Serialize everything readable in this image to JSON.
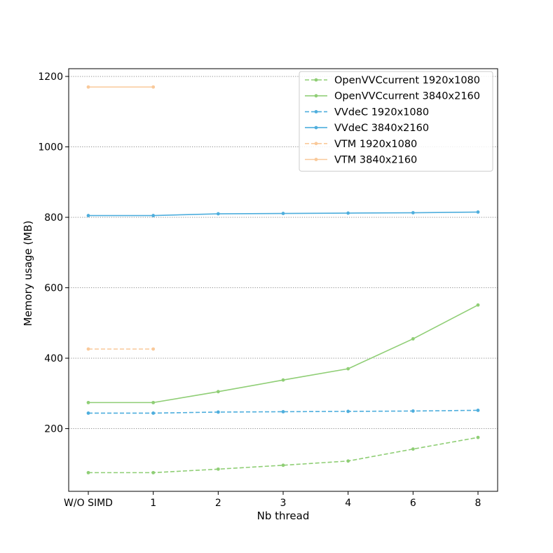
{
  "chart_data": {
    "type": "line",
    "title": "",
    "xlabel": "Nb thread",
    "ylabel": "Memory usage (MB)",
    "categories": [
      "W/O SIMD",
      "1",
      "2",
      "3",
      "4",
      "6",
      "8"
    ],
    "ylim": [
      22,
      1222
    ],
    "yticks": [
      200,
      400,
      600,
      800,
      1000,
      1200
    ],
    "grid": "horizontal-dotted",
    "legend_position": "top-right",
    "series": [
      {
        "name": "OpenVVCcurrent 1920x1080",
        "color": "#8fce75",
        "style": "dashed",
        "values": [
          75,
          75,
          85,
          96,
          108,
          142,
          175
        ]
      },
      {
        "name": "OpenVVCcurrent 3840x2160",
        "color": "#8fce75",
        "style": "solid",
        "values": [
          274,
          274,
          305,
          338,
          370,
          455,
          551
        ]
      },
      {
        "name": "VVdeC 1920x1080",
        "color": "#4eaedd",
        "style": "dashed",
        "values": [
          244,
          244,
          247,
          248,
          249,
          250,
          252
        ]
      },
      {
        "name": "VVdeC 3840x2160",
        "color": "#4eaedd",
        "style": "solid",
        "values": [
          805,
          805,
          810,
          811,
          812,
          813,
          815
        ]
      },
      {
        "name": "VTM 1920x1080",
        "color": "#f9c99a",
        "style": "dashed",
        "values": [
          426,
          426,
          null,
          null,
          null,
          null,
          null
        ]
      },
      {
        "name": "VTM 3840x2160",
        "color": "#f9c99a",
        "style": "solid",
        "values": [
          1170,
          1170,
          null,
          null,
          null,
          null,
          null
        ]
      }
    ]
  }
}
